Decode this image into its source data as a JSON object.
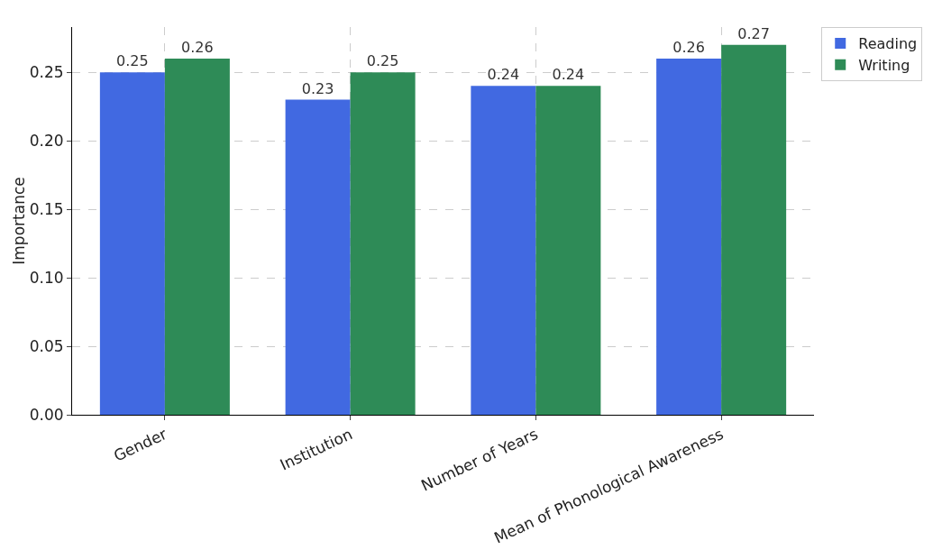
{
  "chart_data": {
    "type": "bar",
    "ylabel": "Importance",
    "categories": [
      "Gender",
      "Institution",
      "Number of Years",
      "Mean of Phonological Awareness"
    ],
    "series": [
      {
        "name": "Reading",
        "color": "#4169e1",
        "values": [
          0.25,
          0.23,
          0.24,
          0.26
        ]
      },
      {
        "name": "Writing",
        "color": "#2e8b57",
        "values": [
          0.26,
          0.25,
          0.24,
          0.27
        ]
      }
    ],
    "ylim": [
      0,
      0.283
    ],
    "yticks": [
      {
        "value": 0,
        "label": "0.00"
      },
      {
        "value": 0.05,
        "label": "0.05"
      },
      {
        "value": 0.1,
        "label": "0.10"
      },
      {
        "value": 0.15,
        "label": "0.15"
      },
      {
        "value": 0.2,
        "label": "0.20"
      },
      {
        "value": 0.25,
        "label": "0.25"
      }
    ],
    "grid": true,
    "legend": "top right",
    "data_labels": true
  }
}
